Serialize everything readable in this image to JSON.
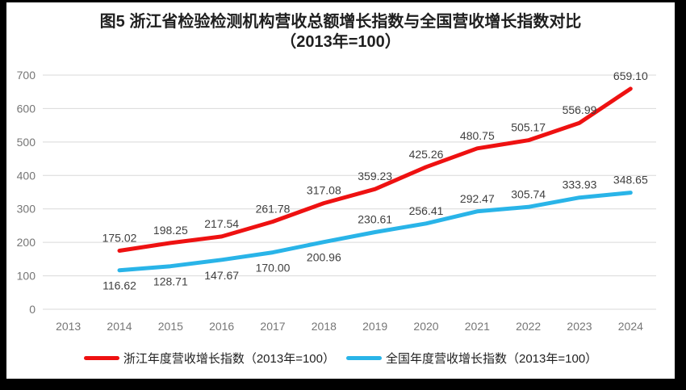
{
  "title": {
    "line1": "图5  浙江省检验检测机构营收总额增长指数与全国营收增长指数对比",
    "line2": "（2013年=100）"
  },
  "chart_data": {
    "type": "line",
    "categories": [
      "2013",
      "2014",
      "2015",
      "2016",
      "2017",
      "2018",
      "2019",
      "2020",
      "2021",
      "2022",
      "2023",
      "2024"
    ],
    "series": [
      {
        "name": "浙江年度营收增长指数（2013年=100）",
        "color": "#ee1111",
        "values": [
          null,
          175.02,
          198.25,
          217.54,
          261.78,
          317.08,
          359.23,
          425.26,
          480.75,
          505.17,
          556.99,
          659.1
        ],
        "labels": [
          null,
          "175.02",
          "198.25",
          "217.54",
          "261.78",
          "317.08",
          "359.23",
          "425.26",
          "480.75",
          "505.17",
          "556.99",
          "659.10"
        ],
        "label_sides": [
          null,
          "above",
          "above",
          "above",
          "above",
          "above",
          "above",
          "above",
          "above",
          "above",
          "above",
          "above"
        ]
      },
      {
        "name": "全国年度营收增长指数（2013年=100）",
        "color": "#29b4e8",
        "values": [
          null,
          116.62,
          128.71,
          147.67,
          170.0,
          200.96,
          230.61,
          256.41,
          292.47,
          305.74,
          333.93,
          348.65
        ],
        "labels": [
          null,
          "116.62",
          "128.71",
          "147.67",
          "170.00",
          "200.96",
          "230.61",
          "256.41",
          "292.47",
          "305.74",
          "333.93",
          "348.65"
        ],
        "label_sides": [
          null,
          "below",
          "below",
          "below",
          "below",
          "below",
          "above",
          "above",
          "above",
          "above",
          "above",
          "above"
        ]
      }
    ],
    "ylim": [
      0,
      700
    ],
    "yticks": [
      0,
      100,
      200,
      300,
      400,
      500,
      600,
      700
    ],
    "grid": true,
    "legend_position": "bottom",
    "gridline_color": "#d9d9d9",
    "axis_label_color": "#767676",
    "data_label_color": "#3f3f3f",
    "line_width": 5
  }
}
